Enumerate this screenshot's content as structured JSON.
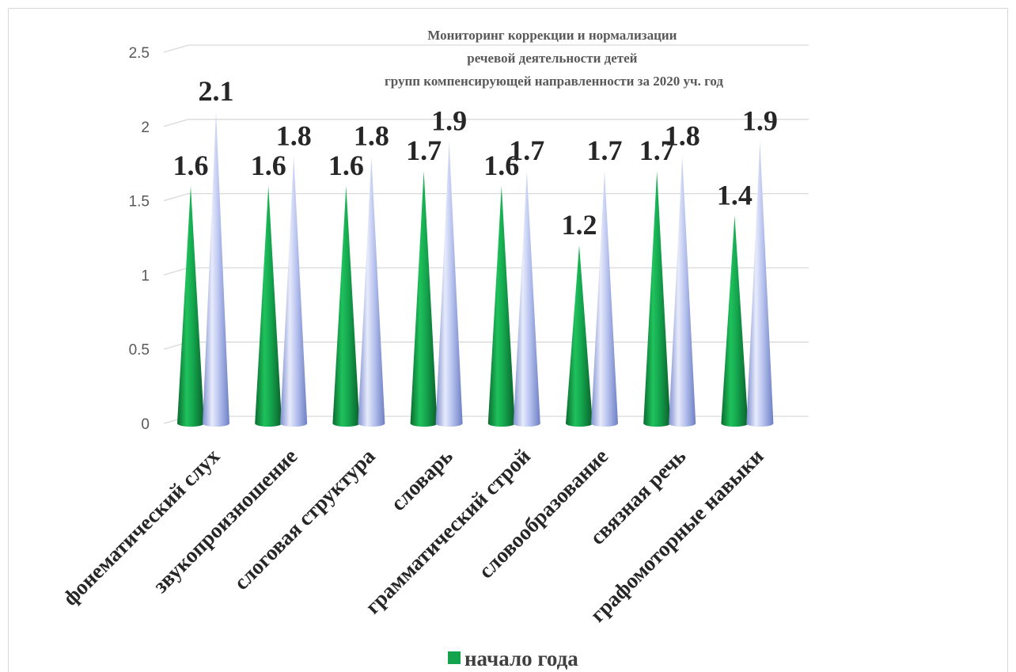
{
  "chart_data": {
    "type": "bar",
    "title_lines": [
      "Мониторинг коррекции и нормализации",
      "речевой деятельности детей",
      "групп компенсирующей направленности за 2020 уч. год"
    ],
    "categories": [
      "фонематический слух",
      "звукопроизношение",
      "слоговая структура",
      "словарь",
      "грамматический строй",
      "словообразование",
      "связная речь",
      "графомоторные навыки"
    ],
    "series": [
      {
        "name": "начало года",
        "values": [
          1.6,
          1.6,
          1.6,
          1.7,
          1.6,
          1.2,
          1.7,
          1.4
        ],
        "color": "#14a44d"
      },
      {
        "values": [
          2.1,
          1.8,
          1.8,
          1.9,
          1.7,
          1.7,
          1.8,
          1.9
        ],
        "color": "#aab8ec"
      }
    ],
    "value_labels": [
      [
        "1.6",
        "1.6",
        "1.6",
        "1.7",
        "1.6",
        "1.2",
        "1.7",
        "1.4"
      ],
      [
        "2.1",
        "1.8",
        "1.8",
        "1.9",
        "1.7",
        "1.7",
        "1.8",
        "1.9"
      ]
    ],
    "yticks": [
      "0",
      "0.5",
      "1",
      "1.5",
      "2",
      "2.5"
    ],
    "ylim": [
      0,
      2.5
    ],
    "grid": true,
    "bar_shape": "cone",
    "legend": {
      "placement": "bottom",
      "entries": [
        "начало года"
      ]
    }
  }
}
